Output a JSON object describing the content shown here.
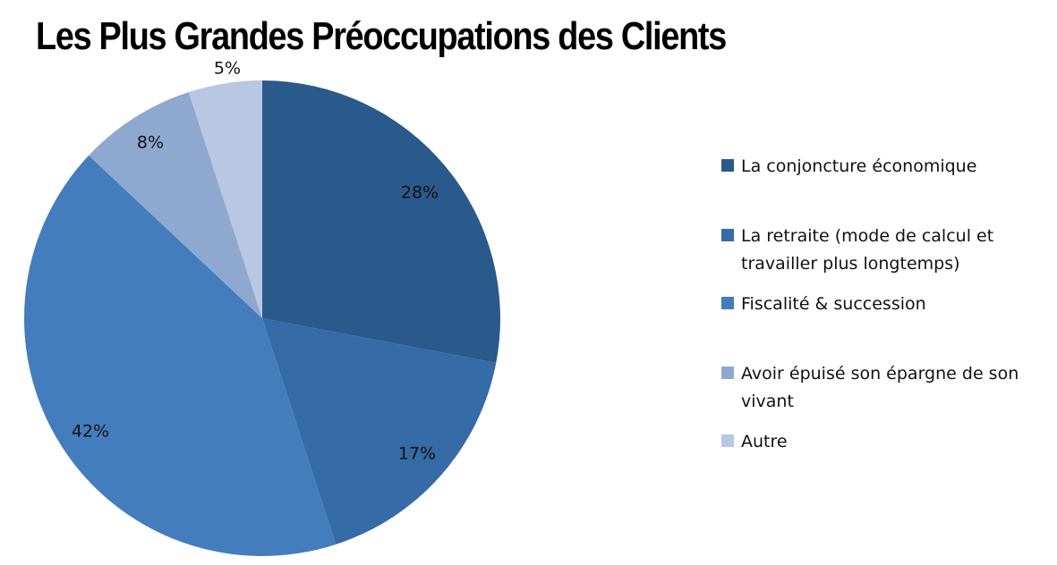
{
  "title": "Les Plus Grandes Préoccupations des Clients",
  "chart_data": {
    "type": "pie",
    "title": "Les Plus Grandes Préoccupations des Clients",
    "categories": [
      "La conjoncture économique",
      "La retraite (mode de calcul et travailler plus longtemps)",
      "Fiscalité & succession",
      "Avoir épuisé son épargne de son vivant",
      "Autre"
    ],
    "values": [
      28,
      17,
      42,
      8,
      5
    ],
    "labels": [
      "28%",
      "17%",
      "42%",
      "8%",
      "5%"
    ],
    "colors": [
      "#2A5A8C",
      "#356BA6",
      "#437DBD",
      "#8EA8D0",
      "#B8C7E2"
    ],
    "start_angle": "12 o'clock, clockwise",
    "legend_position": "right"
  },
  "legend": {
    "items": [
      {
        "label": "La conjoncture économique",
        "color": "#2A5A8C"
      },
      {
        "label": "La retraite (mode de calcul et travailler plus longtemps)",
        "color": "#356BA6"
      },
      {
        "label": "Fiscalité & succession",
        "color": "#437DBD"
      },
      {
        "label": "Avoir épuisé son épargne de son vivant",
        "color": "#8EA8D0"
      },
      {
        "label": "Autre",
        "color": "#B8C7E2"
      }
    ]
  }
}
